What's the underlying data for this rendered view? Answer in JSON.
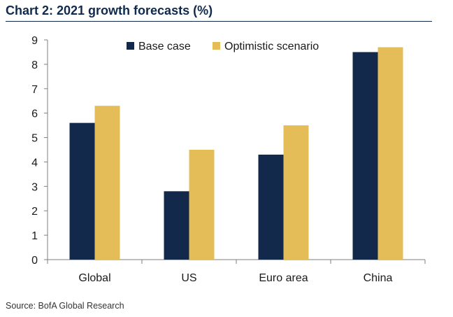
{
  "chart_data": {
    "type": "bar",
    "title": "Chart 2: 2021 growth forecasts (%)",
    "categories": [
      "Global",
      "US",
      "Euro area",
      "China"
    ],
    "series": [
      {
        "name": "Base case",
        "values": [
          5.6,
          2.8,
          4.3,
          8.5
        ],
        "color": "#13294b"
      },
      {
        "name": "Optimistic scenario",
        "values": [
          6.3,
          4.5,
          5.5,
          8.7
        ],
        "color": "#e4bd58"
      }
    ],
    "xlabel": "",
    "ylabel": "",
    "ylim": [
      0,
      9
    ],
    "yticks": [
      0,
      1,
      2,
      3,
      4,
      5,
      6,
      7,
      8,
      9
    ],
    "grid": false,
    "legend_position": "top-center",
    "source": "Source: BofA Global Research"
  }
}
